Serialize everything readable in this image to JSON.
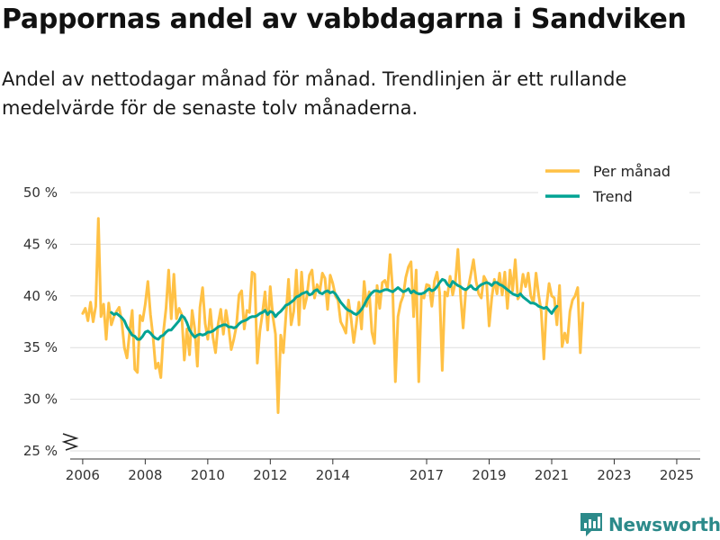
{
  "title": "Pappornas andel av vabbdagarna i Sandviken",
  "subtitle": "Andel av nettodagar månad för månad. Trendlinjen är ett rullande medelvärde för de senaste tolv månaderna.",
  "brand": "Newsworthy",
  "colors": {
    "monthly": "#ffc145",
    "trend": "#00a394",
    "grid": "#dddddd",
    "axis": "#333333",
    "brand": "#2c8a8a"
  },
  "chart_data": {
    "type": "line",
    "x_start": "2006-01",
    "x_unit": "month",
    "xlim": [
      2005.6,
      2025.75
    ],
    "ylim": [
      25,
      50
    ],
    "axis_break": true,
    "y_ticks": [
      {
        "value": 25,
        "label": "25 %"
      },
      {
        "value": 30,
        "label": "30 %"
      },
      {
        "value": 35,
        "label": "35 %"
      },
      {
        "value": 40,
        "label": "40 %"
      },
      {
        "value": 45,
        "label": "45 %"
      },
      {
        "value": 50,
        "label": "50 %"
      }
    ],
    "x_ticks": [
      {
        "value": 2006,
        "label": "2006"
      },
      {
        "value": 2008,
        "label": "2008"
      },
      {
        "value": 2010,
        "label": "2010"
      },
      {
        "value": 2012,
        "label": "2012"
      },
      {
        "value": 2014,
        "label": "2014"
      },
      {
        "value": 2017,
        "label": "2017"
      },
      {
        "value": 2019,
        "label": "2019"
      },
      {
        "value": 2021,
        "label": "2021"
      },
      {
        "value": 2023,
        "label": "2023"
      },
      {
        "value": 2025,
        "label": "2025"
      }
    ],
    "legend": [
      {
        "key": "monthly",
        "label": "Per månad"
      },
      {
        "key": "trend",
        "label": "Trend"
      }
    ],
    "series": [
      {
        "name": "Per månad",
        "key": "monthly",
        "values": [
          38.3,
          38.8,
          37.6,
          39.4,
          37.5,
          39.0,
          47.5,
          38.0,
          39.2,
          35.8,
          39.3,
          37.2,
          38.0,
          38.5,
          38.9,
          37.5,
          35.0,
          34.0,
          36.5,
          38.6,
          32.9,
          32.6,
          38.1,
          37.6,
          39.2,
          41.4,
          38.2,
          36.0,
          33.0,
          33.5,
          32.1,
          36.5,
          38.8,
          42.5,
          37.8,
          42.1,
          37.8,
          38.8,
          38.2,
          33.8,
          36.8,
          34.3,
          38.6,
          36.8,
          33.2,
          38.9,
          40.8,
          37.3,
          35.8,
          38.7,
          36.0,
          34.5,
          37.3,
          38.7,
          36.3,
          38.6,
          37.0,
          34.8,
          35.8,
          37.1,
          40.1,
          40.5,
          36.8,
          38.6,
          38.4,
          42.3,
          42.1,
          33.5,
          36.6,
          38.3,
          40.4,
          36.7,
          40.9,
          38.0,
          36.3,
          28.7,
          36.2,
          34.5,
          38.1,
          41.6,
          37.2,
          38.5,
          42.5,
          37.2,
          42.3,
          38.8,
          39.9,
          42.0,
          42.5,
          39.8,
          41.1,
          40.4,
          42.2,
          41.7,
          38.7,
          42.0,
          41.2,
          40.0,
          39.6,
          37.5,
          37.0,
          36.4,
          39.6,
          37.8,
          35.5,
          37.3,
          39.4,
          36.8,
          41.4,
          39.0,
          40.4,
          36.5,
          35.4,
          41.0,
          38.8,
          41.3,
          41.5,
          40.7,
          44.0,
          40.4,
          31.7,
          38.0,
          39.3,
          40.0,
          41.8,
          42.8,
          43.3,
          38.0,
          42.5,
          31.7,
          40.0,
          39.8,
          41.1,
          41.0,
          39.0,
          41.4,
          42.3,
          40.3,
          32.8,
          40.4,
          40.0,
          41.9,
          40.1,
          41.3,
          44.5,
          40.1,
          36.9,
          40.5,
          40.8,
          42.1,
          43.5,
          41.4,
          40.2,
          39.8,
          41.9,
          41.4,
          37.1,
          39.8,
          41.6,
          40.2,
          42.2,
          40.1,
          42.3,
          38.8,
          42.5,
          40.5,
          43.5,
          39.7,
          40.1,
          42.1,
          40.9,
          42.2,
          40.0,
          39.3,
          42.2,
          40.1,
          38.5,
          33.9,
          39.0,
          41.2,
          40.0,
          39.8,
          37.2,
          41.0,
          35.1,
          36.4,
          35.5,
          38.5,
          39.6,
          40.0,
          40.8,
          34.5,
          39.3
        ]
      },
      {
        "name": "Trend",
        "key": "trend",
        "start": "2006-12",
        "values": [
          38.4,
          38.2,
          38.3,
          38.1,
          37.9,
          37.6,
          37.0,
          36.6,
          36.2,
          36.1,
          35.8,
          35.8,
          36.1,
          36.5,
          36.6,
          36.4,
          36.1,
          35.9,
          35.8,
          36.1,
          36.2,
          36.5,
          36.7,
          36.7,
          37.0,
          37.3,
          37.6,
          38.1,
          37.9,
          37.4,
          36.7,
          36.3,
          36.0,
          36.2,
          36.3,
          36.2,
          36.3,
          36.5,
          36.5,
          36.6,
          36.8,
          37.0,
          37.1,
          37.2,
          37.2,
          37.0,
          37.0,
          36.9,
          37.0,
          37.3,
          37.5,
          37.6,
          37.7,
          37.9,
          38.0,
          38.0,
          38.1,
          38.3,
          38.4,
          38.6,
          38.2,
          38.5,
          38.4,
          38.0,
          38.3,
          38.5,
          38.8,
          39.1,
          39.2,
          39.4,
          39.6,
          39.9,
          40.0,
          40.2,
          40.3,
          40.4,
          40.1,
          40.2,
          40.5,
          40.6,
          40.3,
          40.2,
          40.4,
          40.5,
          40.3,
          40.4,
          40.2,
          39.8,
          39.4,
          39.1,
          38.8,
          38.6,
          38.5,
          38.3,
          38.2,
          38.4,
          38.7,
          39.1,
          39.6,
          40.0,
          40.3,
          40.5,
          40.5,
          40.4,
          40.5,
          40.6,
          40.6,
          40.5,
          40.4,
          40.6,
          40.8,
          40.6,
          40.4,
          40.5,
          40.7,
          40.3,
          40.5,
          40.3,
          40.2,
          40.2,
          40.3,
          40.5,
          40.7,
          40.5,
          40.6,
          40.9,
          41.3,
          41.6,
          41.5,
          41.1,
          40.9,
          41.4,
          41.2,
          41.0,
          40.9,
          40.7,
          40.6,
          40.8,
          41.0,
          40.7,
          40.6,
          40.9,
          41.1,
          41.2,
          41.3,
          41.2,
          41.0,
          41.3,
          41.3,
          41.1,
          41.0,
          40.8,
          40.6,
          40.4,
          40.2,
          40.1,
          40.0,
          40.2,
          39.9,
          39.7,
          39.5,
          39.3,
          39.3,
          39.2,
          39.0,
          38.9,
          38.8,
          38.9,
          38.6,
          38.3,
          38.7,
          39.0
        ]
      }
    ]
  }
}
